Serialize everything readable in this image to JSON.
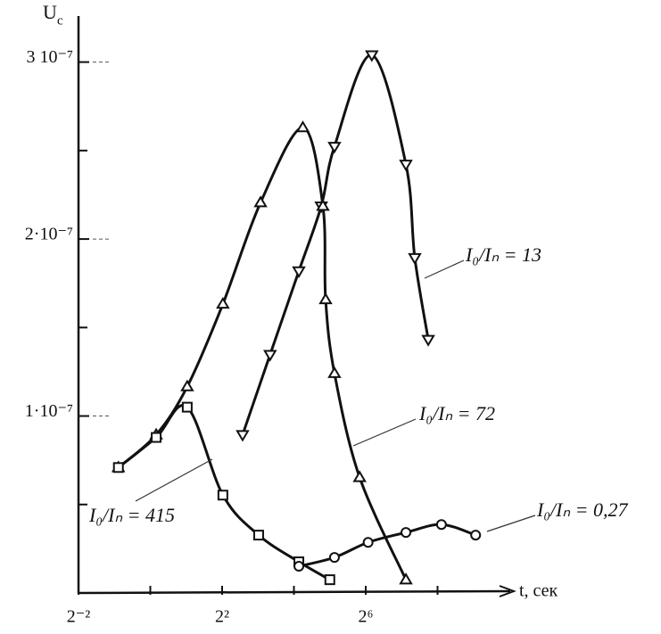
{
  "chart_data": {
    "type": "line",
    "ylabel": "U",
    "ylabel_sub": "c",
    "xlabel": "t, сек",
    "xscale": "log2",
    "xlim": [
      0.25,
      1024
    ],
    "xticks": [
      {
        "value": 0.25,
        "label": "2⁻²"
      },
      {
        "value": 4,
        "label": "2²"
      },
      {
        "value": 64,
        "label": "2⁶"
      }
    ],
    "xminor": [
      1,
      16,
      256
    ],
    "ylim": [
      0,
      3.25e-07
    ],
    "yticks": [
      {
        "value": 1e-07,
        "label": "1·10⁻⁷"
      },
      {
        "value": 2e-07,
        "label": "2·10⁻⁷"
      },
      {
        "value": 3e-07,
        "label": "3 10⁻⁷"
      }
    ],
    "yminor": [
      5e-08,
      1.5e-07,
      2.5e-07
    ],
    "series": [
      {
        "name": "I₀/Iₙ = 13",
        "color": "#111111",
        "marker": "triangle-down",
        "x": [
          5.94,
          10.1,
          17.6,
          27.1,
          35,
          72,
          139,
          165,
          214
        ],
        "values": [
          8.94e-08,
          1.347e-07,
          1.819e-07,
          2.186e-07,
          2.523e-07,
          3.04e-07,
          2.422e-07,
          1.894e-07,
          1.432e-07
        ]
      },
      {
        "name": "I₀/Iₙ = 72",
        "color": "#111111",
        "marker": "triangle-up",
        "x": [
          0.54,
          1.12,
          2.04,
          4.06,
          8.4,
          19,
          28,
          29.5,
          35,
          56.9,
          139
        ],
        "values": [
          7.09e-08,
          8.94e-08,
          1.166e-07,
          1.633e-07,
          2.206e-07,
          2.63e-07,
          2.186e-07,
          1.658e-07,
          1.241e-07,
          6.53e-08,
          7.5e-09
        ]
      },
      {
        "name": "I₀/Iₙ = 415",
        "color": "#111111",
        "marker": "square",
        "x": [
          0.54,
          1.12,
          2.04,
          4.06,
          8.1,
          17.6,
          32
        ],
        "values": [
          7.09e-08,
          8.79e-08,
          1.05e-07,
          5.53e-08,
          3.27e-08,
          1.76e-08,
          7.5e-09
        ]
      },
      {
        "name": "I₀/Iₙ = 0,27",
        "color": "#111111",
        "marker": "circle",
        "x": [
          17.6,
          35,
          67,
          139,
          276,
          534
        ],
        "values": [
          1.51e-08,
          2.01e-08,
          2.86e-08,
          3.42e-08,
          3.87e-08,
          3.27e-08
        ]
      }
    ]
  }
}
